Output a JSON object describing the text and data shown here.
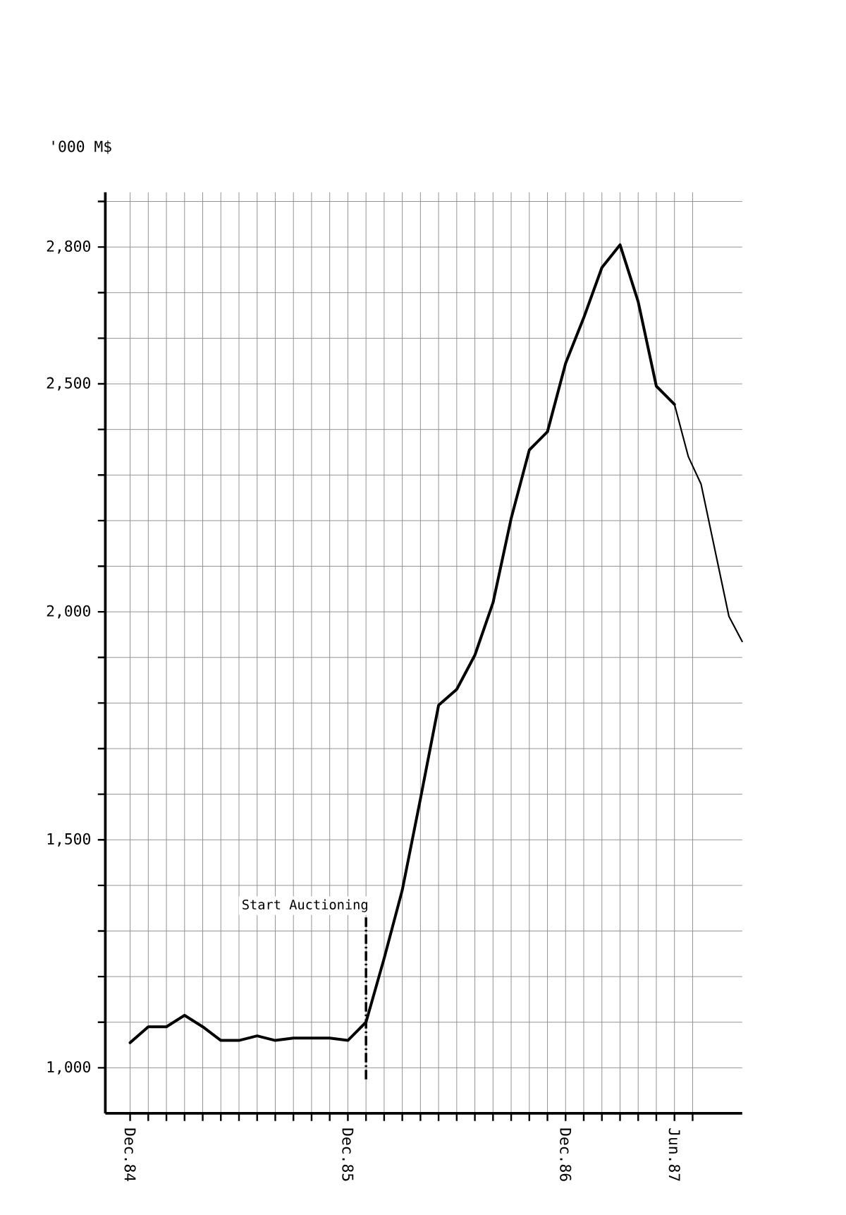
{
  "chart_data": {
    "type": "line",
    "ylabel": "'000 M$",
    "x": [
      "1984-12",
      "1985-01",
      "1985-02",
      "1985-03",
      "1985-04",
      "1985-05",
      "1985-06",
      "1985-07",
      "1985-08",
      "1985-09",
      "1985-10",
      "1985-11",
      "1985-12",
      "1986-01",
      "1986-02",
      "1986-03",
      "1986-04",
      "1986-05",
      "1986-06",
      "1986-07",
      "1986-08",
      "1986-09",
      "1986-10",
      "1986-11",
      "1986-12",
      "1987-01",
      "1987-02",
      "1987-03",
      "1987-04",
      "1987-05",
      "1987-06"
    ],
    "series": [
      {
        "color": "#000000",
        "values": [
          1055,
          1090,
          1090,
          1115,
          1090,
          1060,
          1060,
          1070,
          1060,
          1065,
          1065,
          1065,
          1060,
          1100,
          1240,
          1390,
          1590,
          1795,
          1830,
          1905,
          2020,
          2205,
          2355,
          2395,
          2545,
          2645,
          2755,
          2805,
          2680,
          2495,
          2455
        ]
      },
      {
        "color": "#000000",
        "x": [
          "1987-06",
          "1987-06-24",
          "1987-07-15",
          "1987-09-01",
          "1987-09-23"
        ],
        "values": [
          2455,
          2340,
          2280,
          1990,
          1935
        ]
      }
    ],
    "xlim": [
      "1984-10-20",
      "1987-09-23"
    ],
    "ylim": [
      900,
      2920
    ],
    "xticks": [
      {
        "value": "1984-12",
        "label": "Dec.84"
      },
      {
        "value": "1985-01",
        "label": null
      },
      {
        "value": "1985-02",
        "label": null
      },
      {
        "value": "1985-03",
        "label": null
      },
      {
        "value": "1985-04",
        "label": null
      },
      {
        "value": "1985-05",
        "label": null
      },
      {
        "value": "1985-06",
        "label": null
      },
      {
        "value": "1985-07",
        "label": null
      },
      {
        "value": "1985-08",
        "label": null
      },
      {
        "value": "1985-09",
        "label": null
      },
      {
        "value": "1985-10",
        "label": null
      },
      {
        "value": "1985-11",
        "label": null
      },
      {
        "value": "1985-12",
        "label": "Dec.85"
      },
      {
        "value": "1986-01",
        "label": null
      },
      {
        "value": "1986-02",
        "label": null
      },
      {
        "value": "1986-03",
        "label": null
      },
      {
        "value": "1986-04",
        "label": null
      },
      {
        "value": "1986-05",
        "label": null
      },
      {
        "value": "1986-06",
        "label": null
      },
      {
        "value": "1986-07",
        "label": null
      },
      {
        "value": "1986-08",
        "label": null
      },
      {
        "value": "1986-09",
        "label": null
      },
      {
        "value": "1986-10",
        "label": null
      },
      {
        "value": "1986-11",
        "label": null
      },
      {
        "value": "1986-12",
        "label": "Dec.86"
      },
      {
        "value": "1987-01",
        "label": null
      },
      {
        "value": "1987-02",
        "label": null
      },
      {
        "value": "1987-03",
        "label": null
      },
      {
        "value": "1987-04",
        "label": null
      },
      {
        "value": "1987-05",
        "label": null
      },
      {
        "value": "1987-06",
        "label": "Jun.87"
      },
      {
        "value": "1987-07",
        "label": null
      }
    ],
    "yticks": [
      {
        "value": 1000,
        "label": "1,000"
      },
      {
        "value": 1100,
        "label": null
      },
      {
        "value": 1200,
        "label": null
      },
      {
        "value": 1300,
        "label": null
      },
      {
        "value": 1400,
        "label": null
      },
      {
        "value": 1500,
        "label": "1,500"
      },
      {
        "value": 1600,
        "label": null
      },
      {
        "value": 1700,
        "label": null
      },
      {
        "value": 1800,
        "label": null
      },
      {
        "value": 1900,
        "label": null
      },
      {
        "value": 2000,
        "label": "2,000"
      },
      {
        "value": 2100,
        "label": null
      },
      {
        "value": 2200,
        "label": null
      },
      {
        "value": 2300,
        "label": null
      },
      {
        "value": 2400,
        "label": null
      },
      {
        "value": 2500,
        "label": "2,500"
      },
      {
        "value": 2600,
        "label": null
      },
      {
        "value": 2700,
        "label": null
      },
      {
        "value": 2800,
        "label": "2,800"
      },
      {
        "value": 2900,
        "label": null
      }
    ],
    "ref_lines": [
      {
        "axis": "x",
        "value": "1986-01",
        "label": "Start Auctioning",
        "line_style": "dashed"
      }
    ],
    "grid": true,
    "marker": "none",
    "line_style": "solid"
  }
}
